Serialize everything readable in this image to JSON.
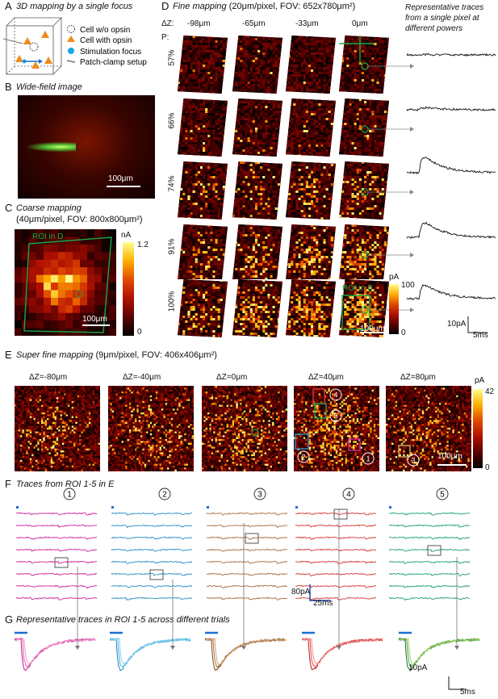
{
  "panelA": {
    "letter": "A",
    "title": "3D mapping by a single focus",
    "legend": [
      {
        "label": "Cell w/o opsin",
        "icon": "dashed-circle-icon"
      },
      {
        "label": "Cell with opsin",
        "icon": "orange-triangle-icon"
      },
      {
        "label": "Stimulation focus",
        "icon": "blue-dot-icon"
      },
      {
        "label": "Patch-clamp setup",
        "icon": "pipette-icon"
      }
    ]
  },
  "panelB": {
    "letter": "B",
    "title": "Wide-field image",
    "scalebar": "100μm"
  },
  "panelC": {
    "letter": "C",
    "title": "Coarse mapping",
    "subtitle": "(40μm/pixel, FOV: 800x800μm²)",
    "roi_label": "ROI in D",
    "scalebar": "100μm",
    "cb_unit": "nA",
    "cb_max": "1.2",
    "cb_min": "0"
  },
  "panelD": {
    "letter": "D",
    "title": "Fine mapping",
    "subtitle": "(20μm/pixel, FOV: 652x780μm²)",
    "dz_label": "ΔZ:",
    "p_label": "P:",
    "dz": [
      "-98μm",
      "-65μm",
      "-33μm",
      "0μm"
    ],
    "powers": [
      "57%",
      "66%",
      "74%",
      "91%",
      "100%"
    ],
    "traces_title_1": "Representative traces",
    "traces_title_2": "from a single pixel at",
    "traces_title_3": "different powers",
    "roi_label": "ROI in E",
    "scalebar": "100μm",
    "cb_unit": "pA",
    "cb_max": "100",
    "cb_min": "0",
    "trace_scale_y": "10pA",
    "trace_scale_x": "5ms",
    "trace_amplitudes": [
      0.02,
      0.12,
      0.85,
      0.8,
      0.75
    ]
  },
  "panelE": {
    "letter": "E",
    "title": "Super fine mapping",
    "subtitle": "(9μm/pixel, FOV: 406x406μm²)",
    "dz": [
      "ΔZ=-80μm",
      "ΔZ=-40μm",
      "ΔZ=0μm",
      "ΔZ=40μm",
      "ΔZ=80μm"
    ],
    "roi_numbers": [
      "1",
      "2",
      "3",
      "4",
      "5"
    ],
    "scalebar": "100μm",
    "cb_unit": "pA",
    "cb_max": "42",
    "cb_min": "0"
  },
  "panelF": {
    "letter": "F",
    "title": "Traces from ROI 1-5 in E",
    "roi_numbers": [
      "1",
      "2",
      "3",
      "4",
      "5"
    ],
    "colors": [
      "#d1289b",
      "#2a8fc8",
      "#a8724a",
      "#d83838",
      "#1aa36b"
    ],
    "scale_y": "80pA",
    "scale_x": "25ms"
  },
  "panelG": {
    "letter": "G",
    "title": "Representative traces in ROI 1-5 across different trials",
    "colors": [
      [
        "#c2187f",
        "#e05fb0",
        "#f09ad0"
      ],
      [
        "#1a86c2",
        "#49b4e0",
        "#89d2f0"
      ],
      [
        "#7a4614",
        "#a7703c",
        "#d2a27a"
      ],
      [
        "#b51d1d",
        "#e04848",
        "#f08a8a"
      ],
      [
        "#1c6b2c",
        "#3fa34a",
        "#a6d05a"
      ]
    ],
    "scale_y": "10pA",
    "scale_x": "5ms"
  }
}
